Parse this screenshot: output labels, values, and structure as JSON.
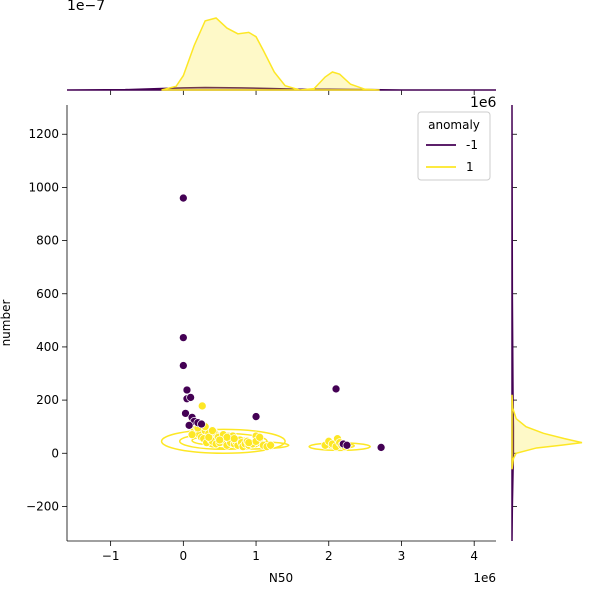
{
  "chart_data": {
    "type": "scatter",
    "xlabel": "N50",
    "ylabel": "number",
    "x_offset_label": "1e6",
    "xlim": [
      -1.6,
      4.3
    ],
    "ylim": [
      -330,
      1310
    ],
    "x_ticks": [
      -1,
      0,
      1,
      2,
      3,
      4
    ],
    "x_tick_labels": [
      "−1",
      "0",
      "1",
      "2",
      "3",
      "4"
    ],
    "y_ticks": [
      -200,
      0,
      200,
      400,
      600,
      800,
      1000,
      1200
    ],
    "y_tick_labels": [
      "−200",
      "0",
      "200",
      "400",
      "600",
      "800",
      "1000",
      "1200"
    ],
    "grid": false,
    "legend": {
      "title": "anomaly",
      "placement": "top-right",
      "entries": [
        {
          "label": "-1",
          "color": "#440154"
        },
        {
          "label": "1",
          "color": "#fde725"
        }
      ]
    },
    "series": [
      {
        "name": "-1",
        "color": "#440154",
        "x": [
          0.0,
          0.0,
          0.0,
          0.05,
          0.05,
          0.1,
          0.03,
          0.12,
          0.15,
          0.2,
          0.08,
          0.25,
          1.0,
          2.1,
          2.2,
          2.25,
          2.72
        ],
        "y": [
          960,
          435,
          330,
          238,
          205,
          210,
          150,
          135,
          120,
          115,
          105,
          110,
          138,
          242,
          35,
          30,
          22
        ]
      },
      {
        "name": "1",
        "color": "#fde725",
        "x": [
          0.1,
          0.15,
          0.18,
          0.2,
          0.22,
          0.25,
          0.28,
          0.3,
          0.32,
          0.35,
          0.38,
          0.4,
          0.42,
          0.45,
          0.48,
          0.5,
          0.55,
          0.58,
          0.6,
          0.62,
          0.65,
          0.68,
          0.7,
          0.72,
          0.75,
          0.78,
          0.8,
          0.82,
          0.85,
          0.88,
          0.9,
          0.95,
          1.0,
          1.05,
          1.1,
          1.15,
          1.2,
          0.26,
          0.15,
          0.2,
          0.35,
          0.4,
          0.6,
          0.5,
          0.7,
          0.9,
          1.0,
          1.05,
          1.95,
          2.0,
          2.05,
          2.1,
          2.12,
          2.15,
          2.18,
          2.2,
          2.22,
          0.12,
          0.3
        ],
        "y": [
          110,
          90,
          100,
          80,
          70,
          60,
          55,
          85,
          40,
          75,
          50,
          45,
          80,
          35,
          60,
          40,
          70,
          45,
          30,
          55,
          40,
          65,
          35,
          45,
          30,
          50,
          40,
          25,
          35,
          45,
          30,
          35,
          65,
          40,
          30,
          25,
          30,
          178,
          120,
          95,
          60,
          85,
          60,
          50,
          55,
          40,
          45,
          60,
          30,
          45,
          35,
          25,
          55,
          40,
          30,
          35,
          25,
          70,
          100
        ]
      }
    ],
    "kde_levels": {
      "x_scale_label": "1e−7",
      "y_scale_label": "1e6",
      "top_x_density": {
        "-1": {
          "x": [
            -1.6,
            -0.8,
            -0.3,
            0.0,
            0.3,
            0.8,
            1.2,
            1.6,
            2.0,
            2.6,
            3.0,
            4.3
          ],
          "y": [
            0.0,
            0.005,
            0.02,
            0.03,
            0.035,
            0.03,
            0.02,
            0.01,
            0.01,
            0.005,
            0.0,
            0.0
          ]
        },
        "1": {
          "x": [
            -0.3,
            -0.1,
            0.0,
            0.15,
            0.3,
            0.45,
            0.6,
            0.75,
            0.9,
            1.0,
            1.1,
            1.25,
            1.4,
            1.6,
            1.8,
            1.95,
            2.05,
            2.15,
            2.3,
            2.5,
            2.7
          ],
          "y": [
            0.0,
            0.05,
            0.2,
            0.62,
            0.96,
            1.0,
            0.86,
            0.78,
            0.8,
            0.74,
            0.55,
            0.25,
            0.06,
            0.0,
            0.02,
            0.18,
            0.25,
            0.22,
            0.08,
            0.01,
            0.0
          ]
        }
      },
      "right_y_density": {
        "-1": {
          "y": [
            -330,
            -200,
            0,
            100,
            200,
            400,
            600,
            1000,
            1310
          ],
          "x": [
            0.0,
            0.005,
            0.02,
            0.02,
            0.015,
            0.01,
            0.005,
            0.002,
            0.0
          ]
        },
        "1": {
          "y": [
            -60,
            -20,
            0,
            20,
            30,
            40,
            55,
            75,
            100,
            130,
            170,
            220
          ],
          "x": [
            0.0,
            0.02,
            0.06,
            0.35,
            0.7,
            1.0,
            0.75,
            0.45,
            0.2,
            0.06,
            0.01,
            0.0
          ]
        }
      }
    }
  }
}
